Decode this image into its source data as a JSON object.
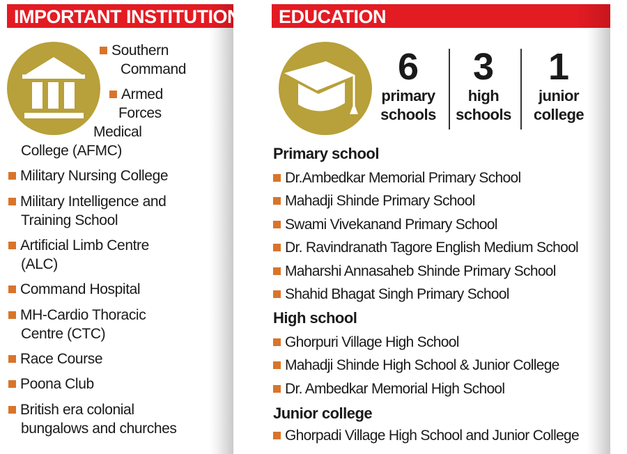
{
  "institutions": {
    "title": "IMPORTANT INSTITUTIONS",
    "icon": "building-icon",
    "first": {
      "line1": "Southern",
      "line2": "Command"
    },
    "second": {
      "line1": "Armed",
      "line2": "Forces",
      "line3": "Medical",
      "line4": "College (AFMC)"
    },
    "items": [
      [
        "Military Nursing College"
      ],
      [
        "Military Intelligence and",
        "Training School"
      ],
      [
        "Artificial Limb Centre",
        "(ALC)"
      ],
      [
        "Command Hospital"
      ],
      [
        "MH-Cardio Thoracic",
        "Centre (CTC)"
      ],
      [
        "Race Course"
      ],
      [
        "Poona Club"
      ],
      [
        "British era colonial",
        "bungalows and churches"
      ]
    ]
  },
  "education": {
    "title": "EDUCATION",
    "icon": "graduation-cap-icon",
    "stats": [
      {
        "n": "6",
        "l1": "primary",
        "l2": "schools"
      },
      {
        "n": "3",
        "l1": "high",
        "l2": "schools"
      },
      {
        "n": "1",
        "l1": "junior",
        "l2": "college"
      }
    ],
    "primary_title": "Primary school",
    "primary": [
      "Dr.Ambedkar Memorial Primary School",
      "Mahadji Shinde Primary School",
      "Swami Vivekanand Primary School",
      "Dr. Ravindranath Tagore English Medium School",
      "Maharshi Annasaheb Shinde Primary School",
      "Shahid Bhagat Singh Primary School"
    ],
    "high_title": "High school",
    "high": [
      "Ghorpuri Village High School",
      "Mahadji Shinde High School & Junior College",
      "Dr. Ambedkar Memorial High School"
    ],
    "junior_title": "Junior college",
    "junior": [
      "Ghorpadi Village High School and Junior College"
    ]
  },
  "colors": {
    "header": "#e31b23",
    "bullet": "#d9742a",
    "icon": "#b8a03a"
  }
}
